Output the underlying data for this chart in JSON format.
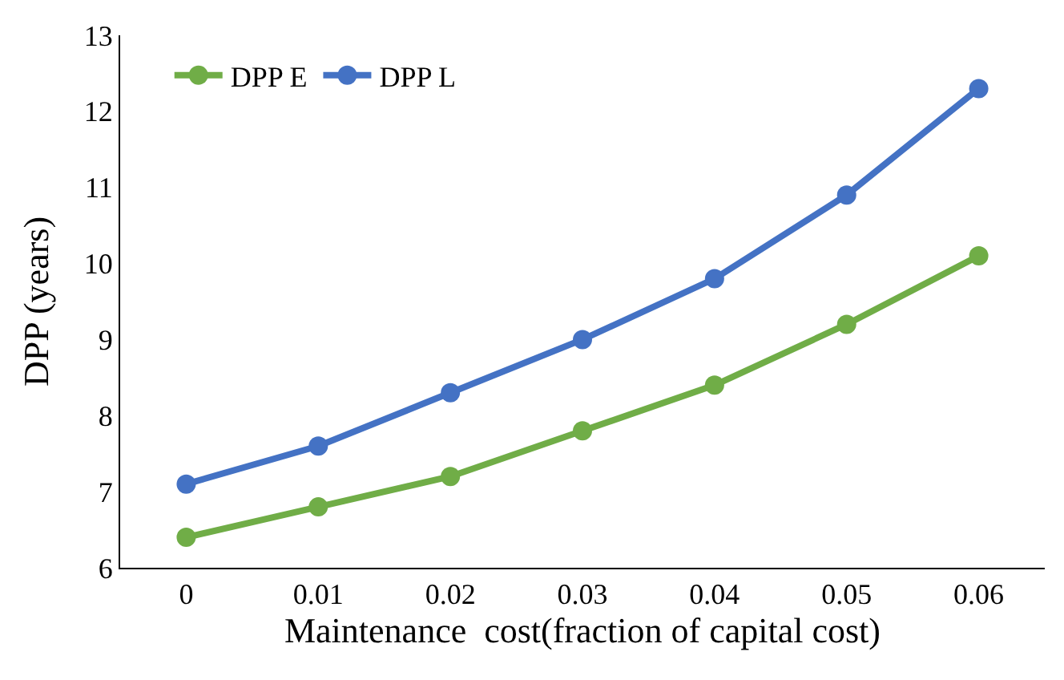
{
  "chart_data": {
    "type": "line",
    "xlabel": "Maintenance  cost(fraction of capital cost)",
    "ylabel": "DPP (years)",
    "categories": [
      "0",
      "0.01",
      "0.02",
      "0.03",
      "0.04",
      "0.05",
      "0.06"
    ],
    "series": [
      {
        "name": "DPP E",
        "color": "#70ad47",
        "values": [
          6.4,
          6.8,
          7.2,
          7.8,
          8.4,
          9.2,
          10.1
        ]
      },
      {
        "name": "DPP L",
        "color": "#4472c4",
        "values": [
          7.1,
          7.6,
          8.3,
          9.0,
          9.8,
          10.9,
          12.3
        ]
      }
    ],
    "ylim": [
      6,
      13
    ],
    "yticks": [
      6,
      7,
      8,
      9,
      10,
      11,
      12,
      13
    ],
    "grid": false,
    "legend": "top left",
    "marker": "circle",
    "line_style": "solid"
  }
}
